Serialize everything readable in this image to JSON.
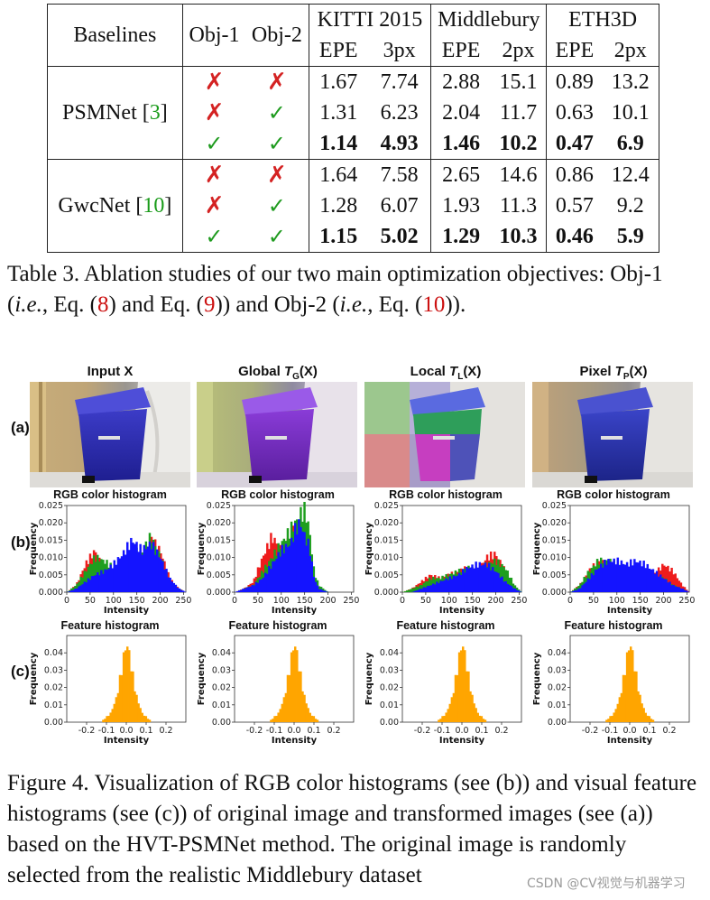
{
  "table": {
    "headers": {
      "baselines": "Baselines",
      "obj1": "Obj-1",
      "obj2": "Obj-2",
      "datasets": [
        "KITTI 2015",
        "Middlebury",
        "ETH3D"
      ],
      "metrics": [
        "EPE",
        "3px",
        "EPE",
        "2px",
        "EPE",
        "2px"
      ]
    },
    "groups": [
      {
        "name": "PSMNet [",
        "ref": "3",
        "name_close": "]",
        "rows": [
          {
            "obj1": "✗",
            "obj2": "✗",
            "values": [
              "1.67",
              "7.74",
              "2.88",
              "15.1",
              "0.89",
              "13.2"
            ],
            "bold": false
          },
          {
            "obj1": "✗",
            "obj2": "✓",
            "values": [
              "1.31",
              "6.23",
              "2.04",
              "11.7",
              "0.63",
              "10.1"
            ],
            "bold": false
          },
          {
            "obj1": "✓",
            "obj2": "✓",
            "values": [
              "1.14",
              "4.93",
              "1.46",
              "10.2",
              "0.47",
              "6.9"
            ],
            "bold": true
          }
        ]
      },
      {
        "name": "GwcNet [",
        "ref": "10",
        "name_close": "]",
        "rows": [
          {
            "obj1": "✗",
            "obj2": "✗",
            "values": [
              "1.64",
              "7.58",
              "2.65",
              "14.6",
              "0.86",
              "12.4"
            ],
            "bold": false
          },
          {
            "obj1": "✗",
            "obj2": "✓",
            "values": [
              "1.28",
              "6.07",
              "1.93",
              "11.3",
              "0.57",
              "9.2"
            ],
            "bold": false
          },
          {
            "obj1": "✓",
            "obj2": "✓",
            "values": [
              "1.15",
              "5.02",
              "1.29",
              "10.3",
              "0.46",
              "5.9"
            ],
            "bold": true
          }
        ]
      }
    ]
  },
  "table_caption": {
    "p1": "Table 3. Ablation studies of our two main optimization objectives: Obj-1 (",
    "ie1": "i.e.",
    "p2": ", Eq. (",
    "ref8": "8",
    "p3": ") and Eq. (",
    "ref9": "9",
    "p4": ")) and Obj-2 (",
    "ie2": "i.e.",
    "p5": ", Eq. (",
    "ref10": "10",
    "p6": "))."
  },
  "figure": {
    "row_labels": [
      "(a)",
      "(b)",
      "(c)"
    ],
    "col_titles": [
      {
        "text": "Input X"
      },
      {
        "text": "Global ",
        "sym": "T",
        "sub": "G",
        "arg": "(X)"
      },
      {
        "text": "Local ",
        "sym": "T",
        "sub": "L",
        "arg": "(X)"
      },
      {
        "text": "Pixel ",
        "sym": "T",
        "sub": "P",
        "arg": "(X)"
      }
    ],
    "rgb_hist_title": "RGB color histogram",
    "feat_hist_title": "Feature histogram",
    "x_label": "Intensity",
    "y_label": "Frequency",
    "colors": {
      "red": "#ee1c1c",
      "green": "#1e9e1e",
      "blue": "#1414ff",
      "orange": "#ffa500"
    }
  },
  "chart_data": [
    {
      "type": "area",
      "panel": "RGB color histogram (Input X)",
      "title": "RGB color histogram",
      "xlabel": "Intensity",
      "ylabel": "Frequency",
      "x_ticks": [
        "0",
        "50",
        "100",
        "150",
        "200",
        "250"
      ],
      "y_ticks": [
        "0.000",
        "0.005",
        "0.010",
        "0.015",
        "0.020",
        "0.025"
      ],
      "xlim": [
        0,
        255
      ],
      "ylim": [
        0,
        0.025
      ],
      "x": [
        0,
        20,
        40,
        60,
        80,
        100,
        120,
        140,
        160,
        180,
        200,
        220,
        240,
        255
      ],
      "series": [
        {
          "name": "R",
          "color": "#ee1c1c",
          "values": [
            0,
            0.002,
            0.008,
            0.012,
            0.006,
            0.005,
            0.006,
            0.011,
            0.009,
            0.015,
            0.012,
            0.004,
            0.001,
            0
          ]
        },
        {
          "name": "G",
          "color": "#1e9e1e",
          "values": [
            0,
            0.002,
            0.006,
            0.01,
            0.009,
            0.007,
            0.008,
            0.012,
            0.011,
            0.016,
            0.01,
            0.003,
            0.001,
            0
          ]
        },
        {
          "name": "B",
          "color": "#1414ff",
          "values": [
            0,
            0.001,
            0.003,
            0.005,
            0.006,
            0.008,
            0.011,
            0.015,
            0.012,
            0.014,
            0.01,
            0.004,
            0.001,
            0
          ]
        }
      ]
    },
    {
      "type": "area",
      "panel": "RGB color histogram (Global)",
      "title": "RGB color histogram",
      "xlabel": "Intensity",
      "ylabel": "Frequency",
      "x_ticks": [
        "0",
        "50",
        "100",
        "150",
        "200",
        "250"
      ],
      "y_ticks": [
        "0.000",
        "0.005",
        "0.010",
        "0.015",
        "0.020",
        "0.025"
      ],
      "xlim": [
        0,
        255
      ],
      "ylim": [
        0,
        0.025
      ],
      "x": [
        0,
        20,
        40,
        60,
        80,
        100,
        120,
        130,
        140,
        150,
        160,
        170,
        180,
        200,
        255
      ],
      "series": [
        {
          "name": "R",
          "color": "#ee1c1c",
          "values": [
            0,
            0.001,
            0.003,
            0.01,
            0.016,
            0.012,
            0.016,
            0.019,
            0.015,
            0.012,
            0.008,
            0.003,
            0.001,
            0,
            0
          ]
        },
        {
          "name": "G",
          "color": "#1e9e1e",
          "values": [
            0,
            0.001,
            0.002,
            0.006,
            0.01,
            0.014,
            0.018,
            0.02,
            0.022,
            0.024,
            0.018,
            0.006,
            0.002,
            0,
            0
          ]
        },
        {
          "name": "B",
          "color": "#1414ff",
          "values": [
            0,
            0.001,
            0.002,
            0.004,
            0.008,
            0.012,
            0.014,
            0.018,
            0.02,
            0.016,
            0.013,
            0.004,
            0.001,
            0,
            0
          ]
        }
      ]
    },
    {
      "type": "area",
      "panel": "RGB color histogram (Local)",
      "title": "RGB color histogram",
      "xlabel": "Intensity",
      "ylabel": "Frequency",
      "x_ticks": [
        "0",
        "50",
        "100",
        "150",
        "200",
        "250"
      ],
      "y_ticks": [
        "0.000",
        "0.005",
        "0.010",
        "0.015",
        "0.020",
        "0.025"
      ],
      "xlim": [
        0,
        255
      ],
      "ylim": [
        0,
        0.025
      ],
      "x": [
        0,
        20,
        40,
        60,
        80,
        100,
        120,
        140,
        160,
        180,
        200,
        220,
        240,
        255
      ],
      "series": [
        {
          "name": "R",
          "color": "#ee1c1c",
          "values": [
            0,
            0.001,
            0.003,
            0.005,
            0.004,
            0.005,
            0.006,
            0.007,
            0.006,
            0.01,
            0.011,
            0.006,
            0.001,
            0
          ]
        },
        {
          "name": "G",
          "color": "#1e9e1e",
          "values": [
            0,
            0.001,
            0.002,
            0.004,
            0.004,
            0.005,
            0.006,
            0.007,
            0.006,
            0.008,
            0.009,
            0.007,
            0.002,
            0
          ]
        },
        {
          "name": "B",
          "color": "#1414ff",
          "values": [
            0,
            0.0,
            0.001,
            0.002,
            0.003,
            0.004,
            0.005,
            0.007,
            0.008,
            0.008,
            0.006,
            0.003,
            0.001,
            0
          ]
        }
      ]
    },
    {
      "type": "area",
      "panel": "RGB color histogram (Pixel)",
      "title": "RGB color histogram",
      "xlabel": "Intensity",
      "ylabel": "Frequency",
      "x_ticks": [
        "0",
        "50",
        "100",
        "150",
        "200",
        "250"
      ],
      "y_ticks": [
        "0.000",
        "0.005",
        "0.010",
        "0.015",
        "0.020",
        "0.025"
      ],
      "xlim": [
        0,
        255
      ],
      "ylim": [
        0,
        0.025
      ],
      "x": [
        0,
        20,
        40,
        60,
        80,
        100,
        120,
        140,
        160,
        180,
        200,
        220,
        240,
        255
      ],
      "series": [
        {
          "name": "R",
          "color": "#ee1c1c",
          "values": [
            0,
            0.002,
            0.006,
            0.009,
            0.008,
            0.006,
            0.005,
            0.006,
            0.005,
            0.005,
            0.008,
            0.006,
            0.002,
            0
          ]
        },
        {
          "name": "G",
          "color": "#1e9e1e",
          "values": [
            0,
            0.002,
            0.006,
            0.009,
            0.009,
            0.008,
            0.007,
            0.007,
            0.006,
            0.004,
            0.004,
            0.002,
            0.001,
            0
          ]
        },
        {
          "name": "B",
          "color": "#1414ff",
          "values": [
            0,
            0.001,
            0.004,
            0.007,
            0.009,
            0.009,
            0.008,
            0.009,
            0.008,
            0.006,
            0.004,
            0.002,
            0.001,
            0
          ]
        }
      ]
    },
    {
      "type": "area",
      "panel": "Feature histogram (all four columns)",
      "title": "Feature histogram",
      "xlabel": "Intensity",
      "ylabel": "Frequency",
      "x_ticks": [
        "-0.2",
        "-0.1",
        "0.0",
        "0.1",
        "0.2"
      ],
      "y_ticks": [
        "0.00",
        "0.01",
        "0.02",
        "0.03",
        "0.04"
      ],
      "xlim": [
        -0.3,
        0.3
      ],
      "ylim": [
        0,
        0.05
      ],
      "x": [
        -0.12,
        -0.08,
        -0.05,
        -0.03,
        -0.01,
        0.0,
        0.01,
        0.03,
        0.05,
        0.08,
        0.12
      ],
      "series": [
        {
          "name": "feature",
          "color": "#ffa500",
          "values": [
            0.001,
            0.005,
            0.014,
            0.026,
            0.04,
            0.046,
            0.042,
            0.028,
            0.015,
            0.005,
            0.001
          ]
        }
      ]
    }
  ],
  "figure_caption": "Figure 4. Visualization of RGB color histograms (see (b)) and visual feature histograms (see (c)) of original image and transformed images (see (a)) based on the HVT-PSMNet method. The original image is randomly selected from the realistic Middlebury dataset",
  "watermark": "CSDN @CV视觉与机器学习"
}
